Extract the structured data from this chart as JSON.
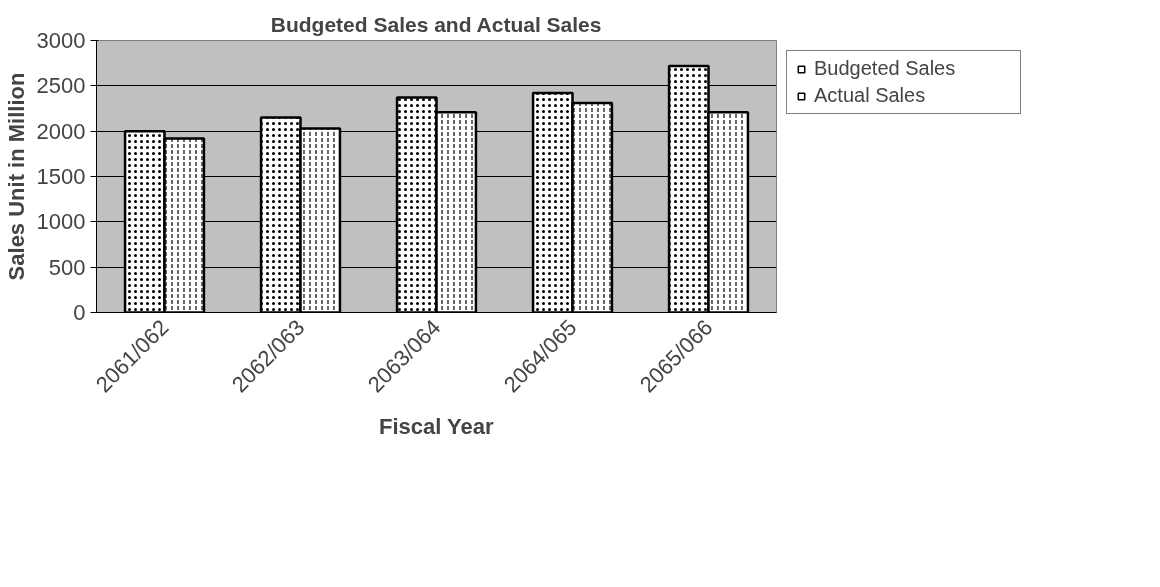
{
  "chart_data": {
    "type": "bar",
    "title": "Budgeted Sales and Actual Sales",
    "xlabel": "Fiscal Year",
    "ylabel": "Sales Unit in Million",
    "categories": [
      "2061/062",
      "2062/063",
      "2063/064",
      "2064/065",
      "2065/066"
    ],
    "series": [
      {
        "name": "Budgeted Sales",
        "color": "#ffffff",
        "values": [
          2000,
          2150,
          2370,
          2420,
          2720
        ]
      },
      {
        "name": "Actual Sales",
        "color": "#ffffff",
        "values": [
          1920,
          2030,
          2210,
          2310,
          2210
        ]
      }
    ],
    "ylim": [
      0,
      3000
    ],
    "yticks": [
      0,
      500,
      1000,
      1500,
      2000,
      2500,
      3000
    ],
    "grid": "y",
    "legend": "right"
  }
}
